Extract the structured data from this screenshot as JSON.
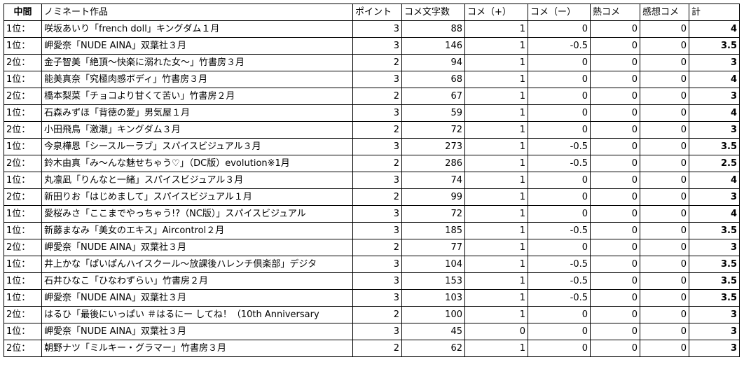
{
  "headers": [
    "中間",
    "ノミネート作品",
    "ポイント",
    "コメ文字数",
    "コメ（+）",
    "コメ（ー）",
    "熱コメ",
    "感想コメ",
    "計"
  ],
  "rows": [
    {
      "rank": "1位：",
      "title": "咲坂あいり「french doll」キングダム１月",
      "points": "3",
      "chars": "88",
      "plus": "1",
      "minus": "0",
      "hot": "0",
      "impression": "0",
      "total": "4"
    },
    {
      "rank": "1位：",
      "title": "岬愛奈「NUDE AINA」双葉社３月",
      "points": "3",
      "chars": "146",
      "plus": "1",
      "minus": "-0.5",
      "hot": "0",
      "impression": "0",
      "total": "3.5"
    },
    {
      "rank": "2位：",
      "title": "金子智美「絶頂～快楽に溺れた女～」竹書房３月",
      "points": "2",
      "chars": "94",
      "plus": "1",
      "minus": "0",
      "hot": "0",
      "impression": "0",
      "total": "3"
    },
    {
      "rank": "1位：",
      "title": "能美真奈「究極肉感ボディ」竹書房３月",
      "points": "3",
      "chars": "68",
      "plus": "1",
      "minus": "0",
      "hot": "0",
      "impression": "0",
      "total": "4"
    },
    {
      "rank": "2位：",
      "title": "橋本梨菜「チョコより甘くて苦い」竹書房２月",
      "points": "2",
      "chars": "67",
      "plus": "1",
      "minus": "0",
      "hot": "0",
      "impression": "0",
      "total": "3"
    },
    {
      "rank": "1位：",
      "title": "石森みずほ「背徳の愛」男気屋１月",
      "points": "3",
      "chars": "59",
      "plus": "1",
      "minus": "0",
      "hot": "0",
      "impression": "0",
      "total": "4"
    },
    {
      "rank": "2位：",
      "title": "小田飛鳥「激潮」キングダム３月",
      "points": "2",
      "chars": "72",
      "plus": "1",
      "minus": "0",
      "hot": "0",
      "impression": "0",
      "total": "3"
    },
    {
      "rank": "1位：",
      "title": "今泉樺恩「シースルーラブ」スパイスビジュアル３月",
      "points": "3",
      "chars": "273",
      "plus": "1",
      "minus": "-0.5",
      "hot": "0",
      "impression": "0",
      "total": "3.5"
    },
    {
      "rank": "2位：",
      "title": "鈴木由真「み～んな魅せちゃう♡」（DC版）evolution※1月",
      "points": "2",
      "chars": "286",
      "plus": "1",
      "minus": "-0.5",
      "hot": "0",
      "impression": "0",
      "total": "2.5"
    },
    {
      "rank": "1位：",
      "title": "丸凛凪「りんなと一緒」スパイスビジュアル３月",
      "points": "3",
      "chars": "74",
      "plus": "1",
      "minus": "0",
      "hot": "0",
      "impression": "0",
      "total": "4"
    },
    {
      "rank": "2位：",
      "title": "新田りお「はじめまして」スパイスビジュアル１月",
      "points": "2",
      "chars": "99",
      "plus": "1",
      "minus": "0",
      "hot": "0",
      "impression": "0",
      "total": "3"
    },
    {
      "rank": "1位：",
      "title": "愛桜みさ「ここまでやっちゃう!?（NC版）」スパイスビジュアル",
      "points": "3",
      "chars": "72",
      "plus": "1",
      "minus": "0",
      "hot": "0",
      "impression": "0",
      "total": "4"
    },
    {
      "rank": "1位：",
      "title": "新藤まなみ「美女のエキス」Aircontrol２月",
      "points": "3",
      "chars": "185",
      "plus": "1",
      "minus": "-0.5",
      "hot": "0",
      "impression": "0",
      "total": "3.5"
    },
    {
      "rank": "2位：",
      "title": "岬愛奈「NUDE AINA」双葉社３月",
      "points": "2",
      "chars": "77",
      "plus": "1",
      "minus": "0",
      "hot": "0",
      "impression": "0",
      "total": "3"
    },
    {
      "rank": "1位：",
      "title": "井上かな「ぱいぱんハイスクール～放課後ハレンチ倶楽部」デジタ",
      "points": "3",
      "chars": "104",
      "plus": "1",
      "minus": "-0.5",
      "hot": "0",
      "impression": "0",
      "total": "3.5"
    },
    {
      "rank": "1位：",
      "title": "石井ひなこ「ひなわずらい」竹書房２月",
      "points": "3",
      "chars": "153",
      "plus": "1",
      "minus": "-0.5",
      "hot": "0",
      "impression": "0",
      "total": "3.5"
    },
    {
      "rank": "1位：",
      "title": "岬愛奈「NUDE AINA」双葉社３月",
      "points": "3",
      "chars": "103",
      "plus": "1",
      "minus": "-0.5",
      "hot": "0",
      "impression": "0",
      "total": "3.5"
    },
    {
      "rank": "2位：",
      "title": "はるひ「最後にいっぱい ＃はるにー してね！（10th Anniversary",
      "points": "2",
      "chars": "100",
      "plus": "1",
      "minus": "0",
      "hot": "0",
      "impression": "0",
      "total": "3"
    },
    {
      "rank": "1位：",
      "title": "岬愛奈「NUDE AINA」双葉社３月",
      "points": "3",
      "chars": "45",
      "plus": "0",
      "minus": "0",
      "hot": "0",
      "impression": "0",
      "total": "3"
    },
    {
      "rank": "2位：",
      "title": "朝野ナツ「ミルキー・グラマー」竹書房３月",
      "points": "2",
      "chars": "62",
      "plus": "1",
      "minus": "0",
      "hot": "0",
      "impression": "0",
      "total": "3"
    }
  ]
}
